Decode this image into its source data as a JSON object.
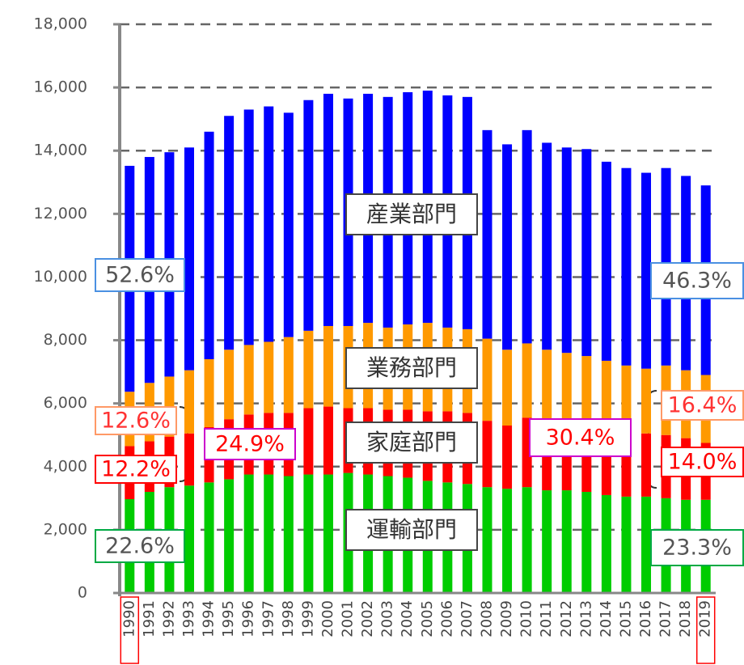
{
  "chart_data": {
    "type": "bar",
    "stacked": true,
    "categories": [
      "1990",
      "1991",
      "1992",
      "1993",
      "1994",
      "1995",
      "1996",
      "1997",
      "1998",
      "1999",
      "2000",
      "2001",
      "2002",
      "2003",
      "2004",
      "2005",
      "2006",
      "2007",
      "2008",
      "2009",
      "2010",
      "2011",
      "2012",
      "2013",
      "2014",
      "2015",
      "2016",
      "2017",
      "2018",
      "2019"
    ],
    "series": [
      {
        "name": "運輸部門",
        "color": "#00cc00",
        "values": [
          2970,
          3200,
          3350,
          3400,
          3500,
          3600,
          3750,
          3750,
          3700,
          3750,
          3750,
          3800,
          3750,
          3700,
          3650,
          3550,
          3500,
          3450,
          3350,
          3300,
          3350,
          3250,
          3250,
          3200,
          3100,
          3050,
          3050,
          3000,
          2950,
          2950
        ]
      },
      {
        "name": "家庭部門",
        "color": "#ff0000",
        "values": [
          1680,
          1600,
          1600,
          1650,
          1750,
          1900,
          1900,
          1950,
          2000,
          2100,
          2150,
          2050,
          2100,
          2100,
          2150,
          2200,
          2250,
          2250,
          2100,
          2000,
          2200,
          2150,
          2050,
          2050,
          2050,
          2050,
          2000,
          2000,
          1950,
          1800
        ]
      },
      {
        "name": "業務部門",
        "color": "#ff9900",
        "values": [
          1720,
          1850,
          1900,
          2000,
          2150,
          2200,
          2200,
          2250,
          2400,
          2450,
          2550,
          2600,
          2700,
          2600,
          2700,
          2800,
          2650,
          2650,
          2600,
          2400,
          2350,
          2300,
          2300,
          2250,
          2200,
          2100,
          2050,
          2200,
          2150,
          2150
        ]
      },
      {
        "name": "産業部門",
        "color": "#0000ff",
        "values": [
          7150,
          7150,
          7100,
          7050,
          7200,
          7400,
          7450,
          7450,
          7100,
          7300,
          7350,
          7200,
          7250,
          7300,
          7350,
          7350,
          7350,
          7350,
          6600,
          6500,
          6750,
          6550,
          6500,
          6550,
          6300,
          6250,
          6200,
          6250,
          6150,
          6000
        ]
      }
    ],
    "ylim": [
      0,
      18000
    ],
    "yticks": [
      0,
      {
        "value": 2000,
        "label": "2,000"
      },
      {
        "value": 4000,
        "label": "4,000"
      },
      {
        "value": 6000,
        "label": "6,000"
      },
      {
        "value": 8000,
        "label": "8,000"
      },
      {
        "value": 10000,
        "label": "10,000"
      },
      {
        "value": 12000,
        "label": "12,000"
      },
      {
        "value": 14000,
        "label": "14,000"
      },
      {
        "value": 16000,
        "label": "16,000"
      },
      {
        "value": 18000,
        "label": "18,000"
      }
    ],
    "grid": true,
    "annotations": [
      "52.6%",
      "46.3%",
      "12.6%",
      "12.2%",
      "24.9%",
      "30.4%",
      "16.4%",
      "14.0%",
      "22.6%",
      "23.3%"
    ]
  }
}
